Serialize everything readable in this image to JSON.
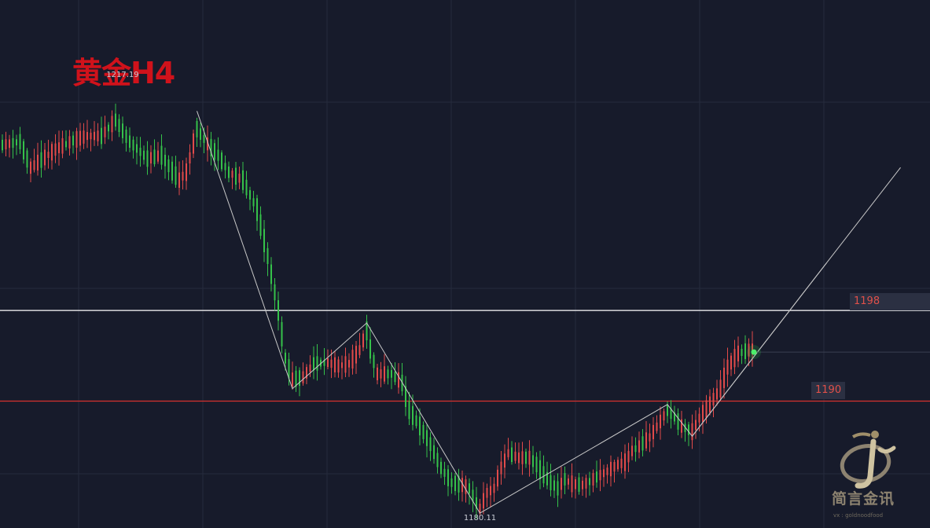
{
  "title": "黄金H4",
  "colors": {
    "background": "#171b2b",
    "grid": "#262b3c",
    "up": "#e24a4a",
    "down": "#35c24a",
    "title": "#d0121b",
    "resistance_line": "#ffffff",
    "support_line": "#d6312e",
    "trend_line": "#c8c8c8",
    "tag_text": "#e0504a",
    "tag_bg": "#2b3042"
  },
  "labels": {
    "high": "1217.19",
    "low": "1180.11",
    "resistance": "1198",
    "support": "1190"
  },
  "watermark": {
    "text": "简言金讯",
    "sub": "vx : goldnoodfood"
  },
  "chart_data": {
    "type": "candlestick",
    "title": "黄金H4",
    "ylim": [
      1178.8,
      1225.4
    ],
    "horizontal_levels": [
      {
        "value": 1198,
        "label": "1198",
        "role": "resistance"
      },
      {
        "value": 1190,
        "label": "1190",
        "role": "support"
      }
    ],
    "annotations": [
      {
        "text": "1217.19",
        "value": 1217.19,
        "type": "high"
      },
      {
        "text": "1180.11",
        "value": 1180.11,
        "type": "low"
      }
    ],
    "trend_path": [
      {
        "bar": 55,
        "price": 1215.6
      },
      {
        "bar": 82,
        "price": 1191.1
      },
      {
        "bar": 103,
        "price": 1196.9
      },
      {
        "bar": 135,
        "price": 1180.11
      },
      {
        "bar": 188,
        "price": 1189.7
      },
      {
        "bar": 195,
        "price": 1186.9
      },
      {
        "bar": 233,
        "price": 1202.2
      }
    ],
    "anchors": [
      [
        0,
        1212.6
      ],
      [
        5,
        1212.9
      ],
      [
        8,
        1210.6
      ],
      [
        12,
        1211.5
      ],
      [
        15,
        1212.2
      ],
      [
        20,
        1213.0
      ],
      [
        24,
        1213.4
      ],
      [
        28,
        1213.4
      ],
      [
        32,
        1214.8
      ],
      [
        36,
        1212.9
      ],
      [
        41,
        1211.4
      ],
      [
        45,
        1211.7
      ],
      [
        48,
        1210.3
      ],
      [
        50,
        1209.5
      ],
      [
        52,
        1210.2
      ],
      [
        55,
        1214.0
      ],
      [
        58,
        1212.7
      ],
      [
        61,
        1211.7
      ],
      [
        64,
        1210.2
      ],
      [
        68,
        1209.5
      ],
      [
        72,
        1206.9
      ],
      [
        75,
        1202.8
      ],
      [
        78,
        1198.0
      ],
      [
        80,
        1193.8
      ],
      [
        82,
        1191.9
      ],
      [
        85,
        1192.1
      ],
      [
        88,
        1193.3
      ],
      [
        92,
        1193.4
      ],
      [
        95,
        1193.1
      ],
      [
        98,
        1193.3
      ],
      [
        101,
        1194.5
      ],
      [
        103,
        1196.2
      ],
      [
        104,
        1194.6
      ],
      [
        106,
        1192.4
      ],
      [
        110,
        1192.4
      ],
      [
        113,
        1191.6
      ],
      [
        115,
        1189.2
      ],
      [
        118,
        1187.8
      ],
      [
        121,
        1186.2
      ],
      [
        124,
        1184.1
      ],
      [
        127,
        1182.8
      ],
      [
        130,
        1182.6
      ],
      [
        132,
        1182.3
      ],
      [
        134,
        1181.0
      ],
      [
        135,
        1180.5
      ],
      [
        137,
        1181.9
      ],
      [
        139,
        1182.3
      ],
      [
        141,
        1184.1
      ],
      [
        143,
        1185.4
      ],
      [
        146,
        1185.0
      ],
      [
        149,
        1185.0
      ],
      [
        151,
        1184.4
      ],
      [
        153,
        1183.5
      ],
      [
        155,
        1182.8
      ],
      [
        157,
        1182.3
      ],
      [
        159,
        1183.1
      ],
      [
        161,
        1182.7
      ],
      [
        164,
        1182.6
      ],
      [
        166,
        1182.9
      ],
      [
        168,
        1183.3
      ],
      [
        171,
        1183.8
      ],
      [
        174,
        1184.4
      ],
      [
        176,
        1184.6
      ],
      [
        178,
        1185.6
      ],
      [
        180,
        1186.0
      ],
      [
        183,
        1186.8
      ],
      [
        186,
        1188.2
      ],
      [
        188,
        1189.2
      ],
      [
        190,
        1188.6
      ],
      [
        192,
        1187.8
      ],
      [
        195,
        1187.3
      ],
      [
        197,
        1188.5
      ],
      [
        200,
        1189.7
      ],
      [
        203,
        1191.1
      ],
      [
        205,
        1193.0
      ],
      [
        208,
        1194.2
      ],
      [
        210,
        1194.4
      ],
      [
        212,
        1194.6
      ]
    ]
  }
}
